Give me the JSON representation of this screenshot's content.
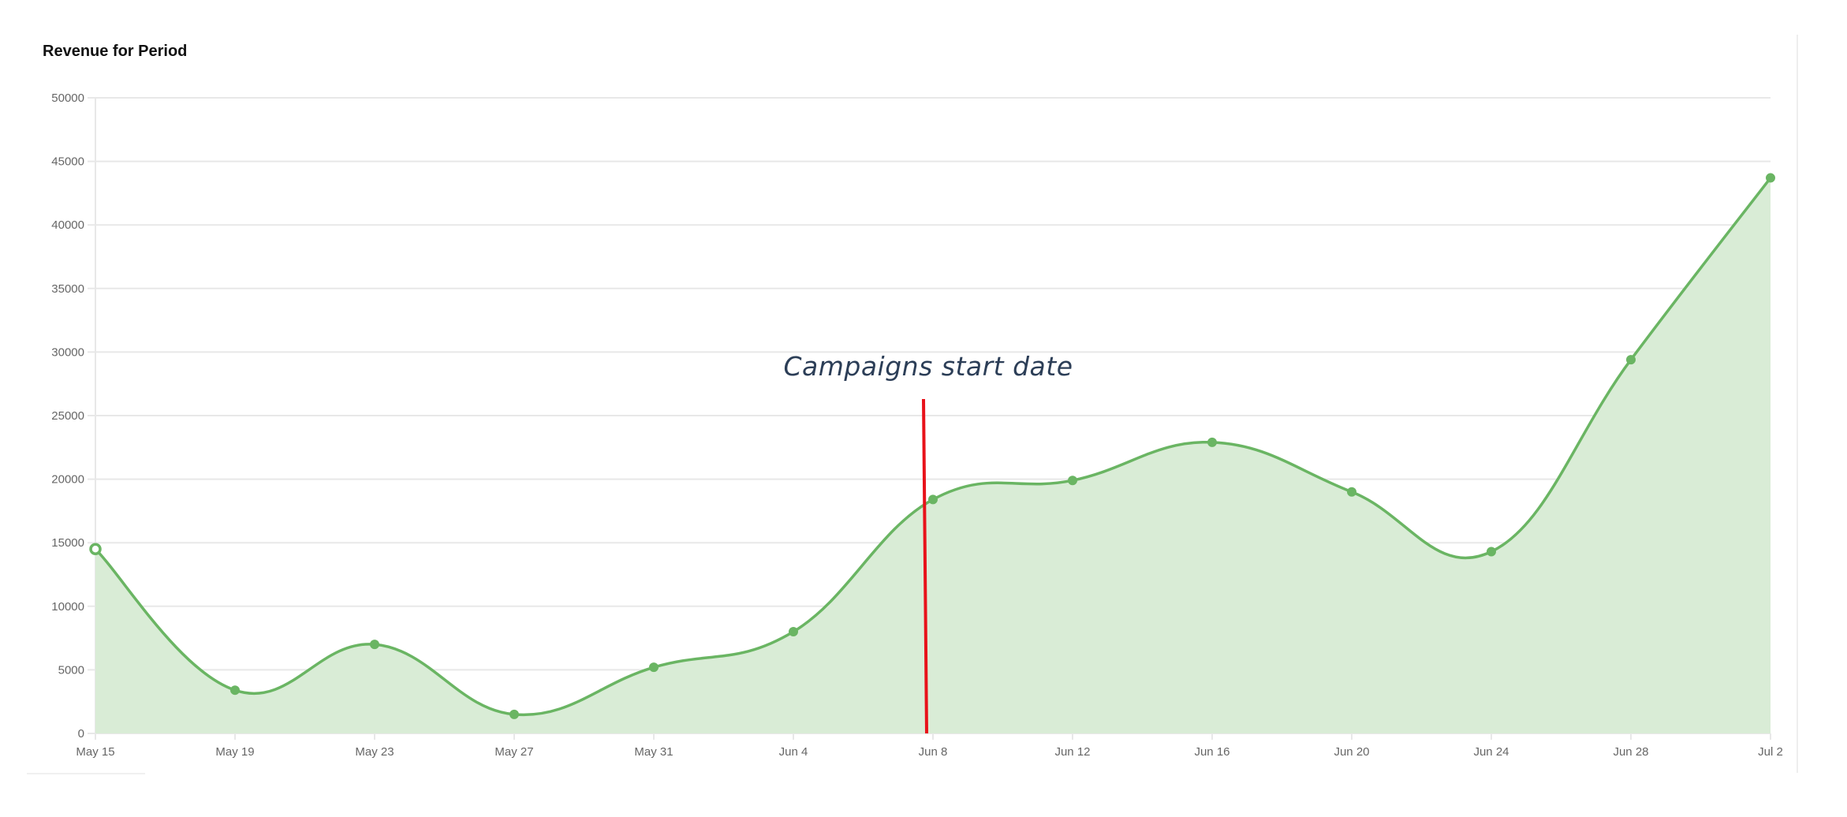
{
  "chart_data": {
    "type": "area",
    "title": "Revenue for Period",
    "xlabel": "",
    "ylabel": "",
    "ylim": [
      0,
      50000
    ],
    "y_ticks": [
      0,
      5000,
      10000,
      15000,
      20000,
      25000,
      30000,
      35000,
      40000,
      45000,
      50000
    ],
    "categories": [
      "May 15",
      "May 19",
      "May 23",
      "May 27",
      "May 31",
      "Jun 4",
      "Jun 8",
      "Jun 12",
      "Jun 16",
      "Jun 20",
      "Jun 24",
      "Jun 28",
      "Jul 2"
    ],
    "series": [
      {
        "values": [
          14500,
          3400,
          7000,
          1500,
          5200,
          8000,
          18400,
          19900,
          22900,
          19000,
          14300,
          29400,
          43700
        ]
      }
    ],
    "grid": true,
    "legend": "none",
    "colors": {
      "line": "#6ab563",
      "fill": "#d9ecd6",
      "grid": "#e8e8e8",
      "annotation_line": "#e8121a",
      "annotation_text": "#2c3e57"
    },
    "annotations": [
      {
        "text": "Campaigns start date",
        "x": "Jun 8"
      }
    ]
  }
}
